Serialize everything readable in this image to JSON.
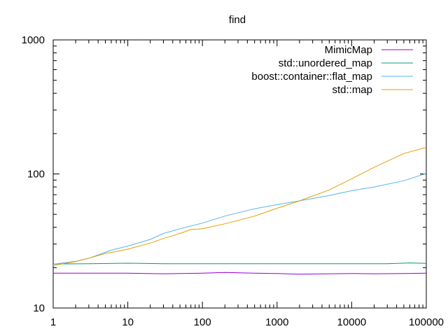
{
  "chart_data": {
    "type": "line",
    "title": "find",
    "xlabel": "",
    "ylabel": "",
    "x_scale": "log",
    "y_scale": "log",
    "xlim": [
      1,
      100000
    ],
    "ylim": [
      10,
      1000
    ],
    "x_ticks": [
      "1",
      "10",
      "100",
      "1000",
      "10000",
      "100000"
    ],
    "y_ticks": [
      "10",
      "100",
      "1000"
    ],
    "grid": false,
    "legend_position": "top-right",
    "series": [
      {
        "name": "MimicMap",
        "color": "#9400d3",
        "x": [
          1,
          3,
          10,
          30,
          100,
          200,
          500,
          1000,
          2000,
          5000,
          10000,
          20000,
          50000,
          100000
        ],
        "y": [
          18.2,
          18.2,
          18.2,
          18.0,
          18.2,
          18.4,
          18.2,
          18.1,
          17.9,
          18.0,
          18.1,
          18.0,
          18.1,
          18.2
        ]
      },
      {
        "name": "std::unordered_map",
        "color": "#009e73",
        "x": [
          1,
          3,
          10,
          30,
          100,
          300,
          1000,
          3000,
          10000,
          30000,
          60000,
          100000
        ],
        "y": [
          21.3,
          21.4,
          21.6,
          21.4,
          21.4,
          21.4,
          21.4,
          21.4,
          21.4,
          21.4,
          21.7,
          21.5
        ]
      },
      {
        "name": "boost::container::flat_map",
        "color": "#56b4e9",
        "x": [
          1,
          2,
          3,
          6,
          10,
          20,
          30,
          50,
          100,
          200,
          500,
          1000,
          2000,
          5000,
          10000,
          20000,
          50000,
          100000
        ],
        "y": [
          21.2,
          22.3,
          23.5,
          27.0,
          29.0,
          32.5,
          36.0,
          39.0,
          43.0,
          48.5,
          55.0,
          59.0,
          63.0,
          69.0,
          75.0,
          80.0,
          89.0,
          101.0
        ]
      },
      {
        "name": "std::map",
        "color": "#e69f00",
        "x": [
          1,
          2,
          3,
          5,
          8,
          10,
          20,
          30,
          50,
          70,
          100,
          200,
          500,
          1000,
          2000,
          5000,
          10000,
          20000,
          50000,
          100000
        ],
        "y": [
          20.8,
          22.2,
          23.5,
          25.5,
          26.8,
          27.5,
          30.5,
          33.0,
          36.0,
          38.5,
          39.0,
          42.5,
          48.5,
          55.5,
          63.0,
          76.0,
          92.0,
          112.0,
          142.0,
          158.0
        ]
      }
    ]
  }
}
